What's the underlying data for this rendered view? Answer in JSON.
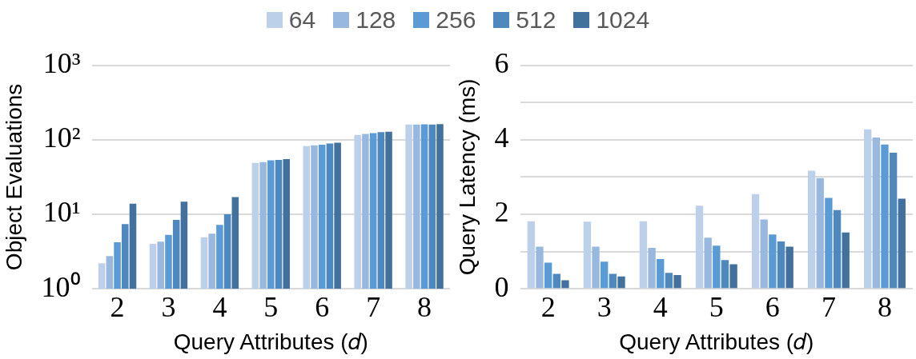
{
  "chart_data": [
    {
      "type": "bar",
      "xlabel": "Query Attributes (𝑑)",
      "ylabel": "Object Evaluations",
      "categories": [
        "2",
        "3",
        "4",
        "5",
        "6",
        "7",
        "8"
      ],
      "log": true,
      "ylim": [
        1,
        1000
      ],
      "yticks": [
        {
          "value": 1,
          "label": "10⁰"
        },
        {
          "value": 10,
          "label": "10¹"
        },
        {
          "value": 100,
          "label": "10²"
        },
        {
          "value": 1000,
          "label": "10³"
        }
      ],
      "grid": "y",
      "legend": "top",
      "series": [
        {
          "name": "64",
          "color": "#bdd0ea",
          "values": [
            2.2,
            4.0,
            4.9,
            49,
            82,
            116,
            160
          ]
        },
        {
          "name": "128",
          "color": "#99b8df",
          "values": [
            2.75,
            4.3,
            5.5,
            50,
            84,
            120,
            160
          ]
        },
        {
          "name": "256",
          "color": "#5b9bd5",
          "values": [
            4.2,
            5.3,
            7.2,
            53,
            86,
            123,
            161
          ]
        },
        {
          "name": "512",
          "color": "#4f88bd",
          "values": [
            7.4,
            8.4,
            10,
            53.5,
            89,
            127,
            160
          ]
        },
        {
          "name": "1024",
          "color": "#41719c",
          "values": [
            13.9,
            14.8,
            17,
            55,
            91,
            128,
            162
          ]
        }
      ]
    },
    {
      "type": "bar",
      "xlabel": "Query Attributes (𝑑)",
      "ylabel": "Query Latency (ms)",
      "categories": [
        "2",
        "3",
        "4",
        "5",
        "6",
        "7",
        "8"
      ],
      "ylim": [
        0,
        6
      ],
      "yticks": [
        0,
        {
          "value": 1,
          "label": null
        },
        2,
        {
          "value": 3,
          "label": null
        },
        4,
        {
          "value": 5,
          "label": null
        },
        6
      ],
      "grid": "y",
      "legend": "top",
      "series": [
        {
          "name": "64",
          "color": "#bdd0ea",
          "values": [
            1.81,
            1.8,
            1.81,
            2.23,
            2.54,
            3.17,
            4.28
          ]
        },
        {
          "name": "128",
          "color": "#99b8df",
          "values": [
            1.13,
            1.13,
            1.1,
            1.37,
            1.86,
            2.97,
            4.06
          ]
        },
        {
          "name": "256",
          "color": "#5b9bd5",
          "values": [
            0.7,
            0.73,
            0.8,
            1.16,
            1.46,
            2.44,
            3.87
          ]
        },
        {
          "name": "512",
          "color": "#4f88bd",
          "values": [
            0.4,
            0.4,
            0.43,
            0.77,
            1.27,
            2.11,
            3.65
          ]
        },
        {
          "name": "1024",
          "color": "#41719c",
          "values": [
            0.23,
            0.33,
            0.37,
            0.66,
            1.13,
            1.51,
            2.42
          ]
        }
      ]
    }
  ]
}
